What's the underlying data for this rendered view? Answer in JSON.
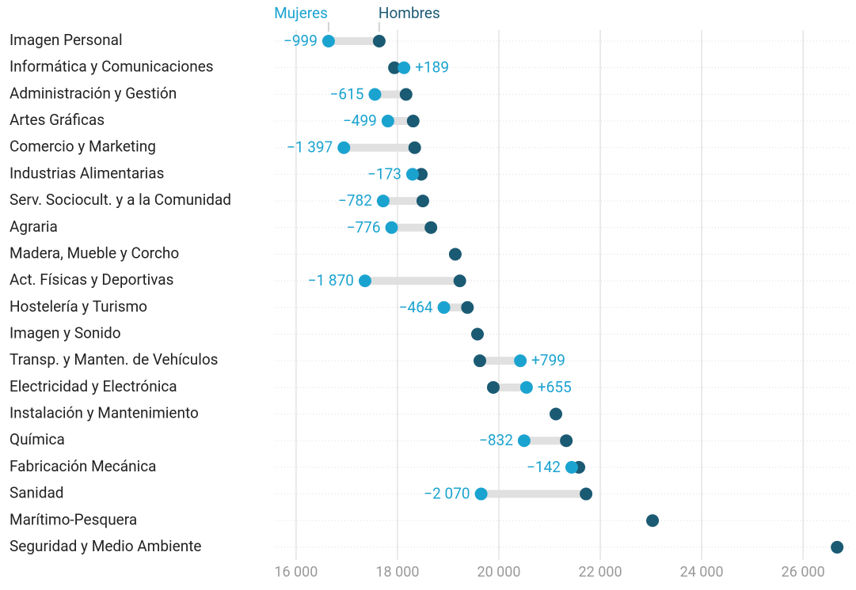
{
  "chart_data": {
    "type": "dumbbell",
    "categories": [
      "Imagen Personal",
      "Informática y Comunicaciones",
      "Administración y Gestión",
      "Artes Gráficas",
      "Comercio y Marketing",
      "Industrias Alimentarias",
      "Serv. Sociocult. y a la Comunidad",
      "Agraria",
      "Madera, Mueble y Corcho",
      "Act. Físicas y Deportivas",
      "Hostelería y Turismo",
      "Imagen y Sonido",
      "Transp. y Manten. de Vehículos",
      "Electricidad y Electrónica",
      "Instalación y Mantenimiento",
      "Química",
      "Fabricación Mecánica",
      "Sanidad",
      "Marítimo-Pesquera",
      "Seguridad y Medio Ambiente"
    ],
    "series": [
      {
        "name": "Mujeres",
        "color": "#1ba3d0",
        "values": [
          16641,
          18129,
          17555,
          17811,
          16943,
          18297,
          17718,
          17884,
          null,
          17360,
          18916,
          null,
          20424,
          20545,
          null,
          20498,
          21436,
          19650,
          null,
          null
        ]
      },
      {
        "name": "Hombres",
        "color": "#1b5a73",
        "values": [
          17640,
          17940,
          18170,
          18310,
          18340,
          18470,
          18500,
          18660,
          19140,
          19230,
          19380,
          19578,
          19625,
          19890,
          21125,
          21330,
          21578,
          21720,
          23031,
          26672
        ]
      }
    ],
    "differences": [
      -999,
      189,
      -615,
      -499,
      -1397,
      -173,
      -782,
      -776,
      null,
      -1870,
      -464,
      null,
      799,
      655,
      null,
      -832,
      -142,
      -2070,
      null,
      null
    ],
    "difference_labels": [
      "−999",
      "+189",
      "−615",
      "−499",
      "−1 397",
      "−173",
      "−782",
      "−776",
      null,
      "−1 870",
      "−464",
      null,
      "+799",
      "+655",
      null,
      "−832",
      "−142",
      "−2 070",
      null,
      null
    ],
    "xlim": [
      15580,
      26950
    ],
    "xticks": [
      {
        "value": 16000,
        "label": "16 000"
      },
      {
        "value": 18000,
        "label": "18 000"
      },
      {
        "value": 20000,
        "label": "20 000"
      },
      {
        "value": 22000,
        "label": "22 000"
      },
      {
        "value": 24000,
        "label": "24 000"
      },
      {
        "value": 26000,
        "label": "26 000"
      }
    ],
    "grid": true
  }
}
